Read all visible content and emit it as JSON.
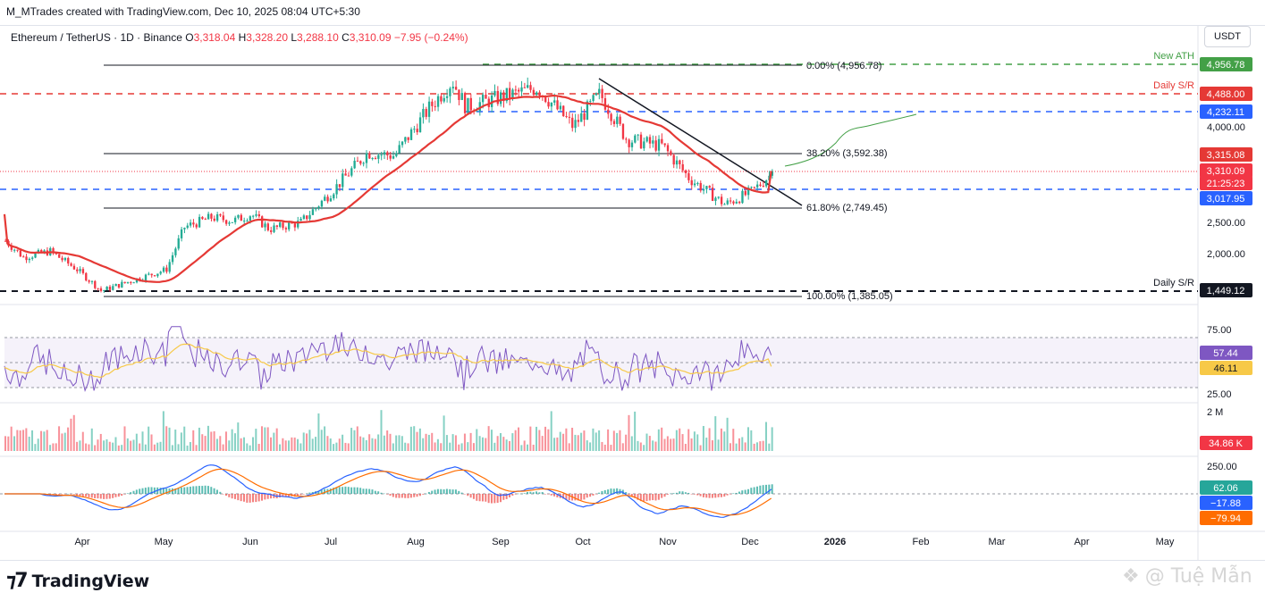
{
  "header": {
    "created_by": "M_MTrades created with TradingView.com, Dec 10, 2025 08:04 UTC+5:30"
  },
  "legend": {
    "symbol": "Ethereum / TetherUS · 1D · Binance",
    "o_label": "O",
    "o": "3,318.04",
    "h_label": "H",
    "h": "3,328.20",
    "l_label": "L",
    "l": "3,288.10",
    "c_label": "C",
    "c": "3,310.09",
    "change": "−7.95 (−0.24%)"
  },
  "currency": "USDT",
  "colors": {
    "up": "#22ab94",
    "down": "#f23645",
    "ma": "#e53935",
    "rsi": "#7e57c2",
    "rsi_ma": "#f7c948",
    "macd": "#2962ff",
    "signal": "#ff6d00",
    "green_dash": "#43a047",
    "red_dash": "#e53935",
    "blue_dash": "#2962ff"
  },
  "annotations": {
    "new_ath": "New ATH",
    "daily_sr_top": "Daily S/R",
    "daily_sr_bottom": "Daily S/R",
    "fib_0": "0.00% (4,956.78)",
    "fib_382": "38.20% (3,592.38)",
    "fib_618": "61.80% (2,749.45)",
    "fib_100": "100.00% (1,385.05)"
  },
  "price_scale": {
    "ticks": [
      "4,000.00",
      "2,500.00",
      "2,000.00"
    ],
    "tags": [
      {
        "text": "4,956.78",
        "color": "#43a047"
      },
      {
        "text": "4,488.00",
        "color": "#e53935"
      },
      {
        "text": "4,232.11",
        "color": "#2962ff"
      },
      {
        "text": "3,315.08",
        "color": "#e53935"
      },
      {
        "text": "3,310.09",
        "color": "#f23645"
      },
      {
        "text": "21:25:23",
        "color": "#f23645"
      },
      {
        "text": "3,017.95",
        "color": "#2962ff"
      },
      {
        "text": "1,449.12",
        "color": "#131722"
      }
    ]
  },
  "rsi_scale": {
    "ticks": [
      "75.00",
      "25.00"
    ],
    "tags": [
      {
        "text": "57.44",
        "color": "#7e57c2"
      },
      {
        "text": "46.11",
        "color": "#f7c948"
      }
    ]
  },
  "volume_scale": {
    "ticks": [
      "2 M"
    ],
    "tags": [
      {
        "text": "34.86 K",
        "color": "#f23645"
      }
    ]
  },
  "macd_scale": {
    "ticks": [
      "250.00"
    ],
    "tags": [
      {
        "text": "62.06",
        "color": "#26a69a"
      },
      {
        "text": "−17.88",
        "color": "#2962ff"
      },
      {
        "text": "−79.94",
        "color": "#ff6d00"
      }
    ]
  },
  "time_axis": [
    "Apr",
    "May",
    "Jun",
    "Jul",
    "Aug",
    "Sep",
    "Oct",
    "Nov",
    "Dec",
    "2026",
    "Feb",
    "Mar",
    "Apr",
    "May"
  ],
  "footer": {
    "logo_text": "TradingView",
    "watermark": "@ Tuệ Mẫn"
  },
  "chart_data": {
    "type": "candlestick",
    "symbol": "Ethereum / TetherUS",
    "interval": "1D",
    "exchange": "Binance",
    "ylim": [
      1385,
      4956.78
    ],
    "close_path": [
      [
        "Mar",
        2240
      ],
      [
        "Mar",
        1990
      ],
      [
        "Mar",
        2080
      ],
      [
        "Apr",
        1800
      ],
      [
        "Apr",
        1560
      ],
      [
        "Apr",
        1470
      ],
      [
        "Apr",
        1600
      ],
      [
        "May",
        1800
      ],
      [
        "May",
        2450
      ],
      [
        "May",
        2600
      ],
      [
        "Jun",
        2550
      ],
      [
        "Jun",
        2650
      ],
      [
        "Jun",
        2420
      ],
      [
        "Jul",
        2520
      ],
      [
        "Jul",
        3000
      ],
      [
        "Jul",
        3600
      ],
      [
        "Aug",
        3550
      ],
      [
        "Aug",
        4300
      ],
      [
        "Aug",
        4700
      ],
      [
        "Aug",
        4300
      ],
      [
        "Sep",
        4450
      ],
      [
        "Sep",
        4600
      ],
      [
        "Oct",
        4000
      ],
      [
        "Oct",
        4500
      ],
      [
        "Oct",
        3800
      ],
      [
        "Nov",
        3700
      ],
      [
        "Nov",
        3200
      ],
      [
        "Nov",
        2800
      ],
      [
        "Dec",
        3000
      ],
      [
        "Dec",
        3310.09
      ]
    ],
    "levels": [
      {
        "label": "New ATH",
        "value": 4956.78
      },
      {
        "label": "Daily S/R",
        "value": 4488.0
      },
      {
        "label": "",
        "value": 4232.11
      },
      {
        "label": "",
        "value": 3017.95
      },
      {
        "label": "Daily S/R",
        "value": 1449.12
      }
    ],
    "fibonacci": [
      {
        "ratio": "0.00%",
        "value": 4956.78
      },
      {
        "ratio": "38.20%",
        "value": 3592.38
      },
      {
        "ratio": "61.80%",
        "value": 2749.45
      },
      {
        "ratio": "100.00%",
        "value": 1385.05
      }
    ],
    "ma_last": 3315.08,
    "last_price": 3310.09,
    "rsi": {
      "value": 57.44,
      "ma": 46.11,
      "levels": [
        70,
        50,
        30
      ]
    },
    "volume_last": "34.86 K",
    "macd": {
      "hist": 62.06,
      "macd": -17.88,
      "signal": -79.94
    }
  }
}
